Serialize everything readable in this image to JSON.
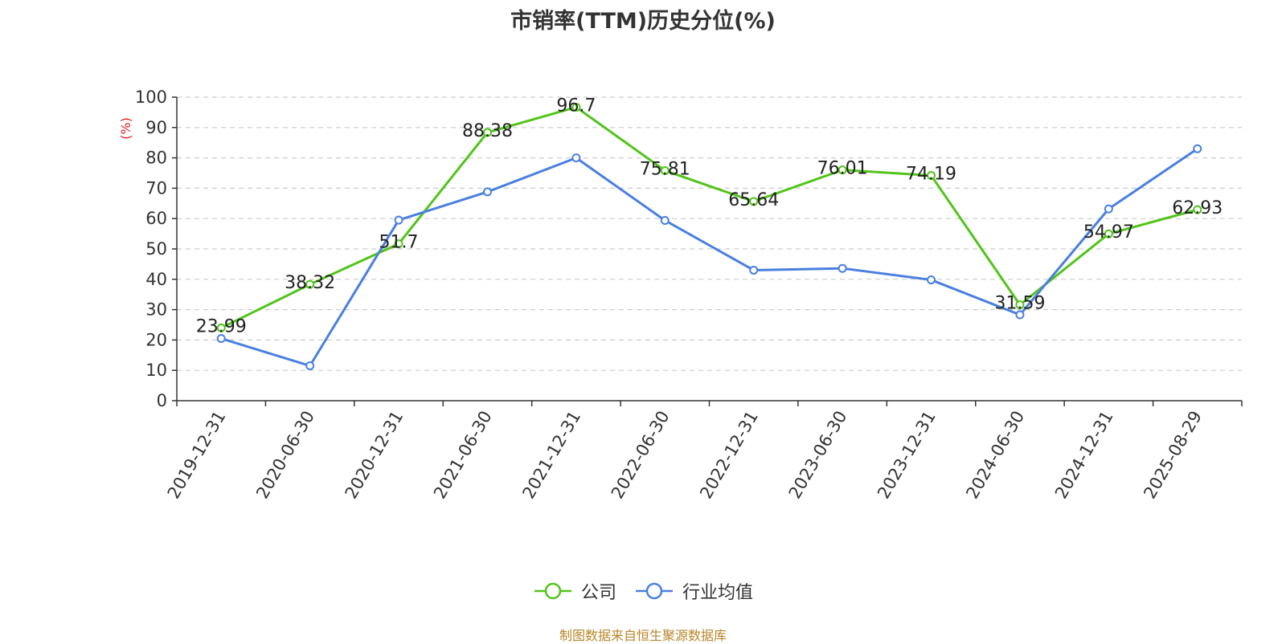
{
  "chart_data": {
    "type": "line",
    "title": "市销率(TTM)历史分位(%)",
    "ylabel": "(%)",
    "xlabel": "",
    "categories": [
      "2019-12-31",
      "2020-06-30",
      "2020-12-31",
      "2021-06-30",
      "2021-12-31",
      "2022-06-30",
      "2022-12-31",
      "2023-06-30",
      "2023-12-31",
      "2024-06-30",
      "2024-12-31",
      "2025-08-29"
    ],
    "ylim": [
      0,
      100
    ],
    "yticks": [
      0,
      10,
      20,
      30,
      40,
      50,
      60,
      70,
      80,
      90,
      100
    ],
    "grid": "horizontal-dashed",
    "legend_position": "bottom-center",
    "series": [
      {
        "name": "公司",
        "color": "#52c41a",
        "values": [
          23.99,
          38.32,
          51.7,
          88.38,
          96.7,
          75.81,
          65.64,
          76.01,
          74.19,
          31.59,
          54.97,
          62.93
        ],
        "labels": [
          "23.99",
          "38.32",
          "51.7",
          "88.38",
          "96.7",
          "75.81",
          "65.64",
          "76.01",
          "74.19",
          "31.59",
          "54.97",
          "62.93"
        ]
      },
      {
        "name": "行业均值",
        "color": "#4a7fe0",
        "values": [
          20.5,
          11.5,
          59.5,
          68.8,
          80.0,
          59.4,
          43.0,
          43.6,
          39.8,
          28.3,
          63.2,
          83.0
        ]
      }
    ],
    "source": "制图数据来自恒生聚源数据库"
  }
}
